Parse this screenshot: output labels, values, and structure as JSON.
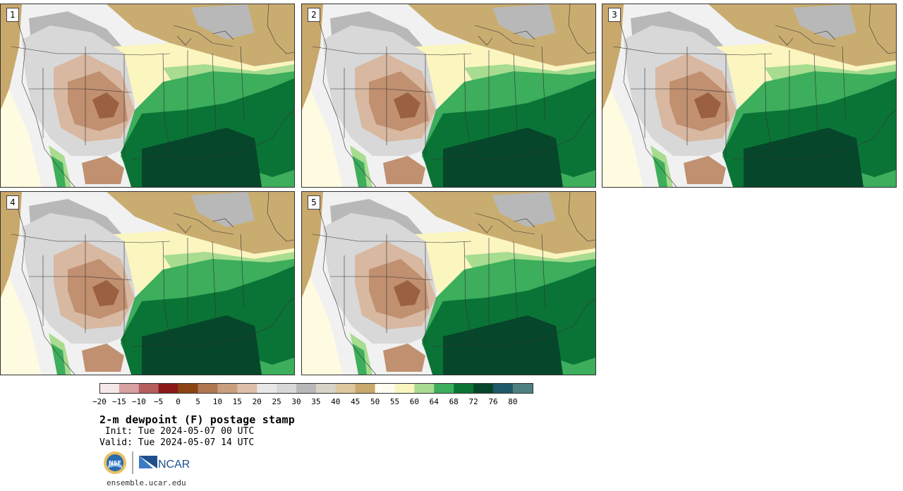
{
  "panels": [
    {
      "label": "1"
    },
    {
      "label": "2"
    },
    {
      "label": "3"
    },
    {
      "label": "4"
    },
    {
      "label": "5"
    }
  ],
  "colorbar": {
    "tick_labels": [
      "−20",
      "−15",
      "−10",
      "−5",
      "0",
      "5",
      "10",
      "15",
      "20",
      "25",
      "30",
      "35",
      "40",
      "45",
      "50",
      "55",
      "60",
      "64",
      "68",
      "72",
      "76",
      "80"
    ],
    "colors": [
      "#f5e8e8",
      "#d8a0a0",
      "#b55e5e",
      "#8b1a1a",
      "#8b4513",
      "#b07850",
      "#c8a080",
      "#dcc0a8",
      "#e8e8e8",
      "#d8d8d8",
      "#b8b8b8",
      "#d8d4c8",
      "#dcc8a0",
      "#c8aa6c",
      "#fffdf0",
      "#fbf5c0",
      "#a8dc90",
      "#3cae5c",
      "#0a7436",
      "#06462a",
      "#1e5a6a",
      "#4e8080"
    ]
  },
  "title": "2-m dewpoint (F) postage stamp",
  "init": " Init: Tue 2024-05-07 00 UTC",
  "valid": "Valid: Tue 2024-05-07 14 UTC",
  "logos": {
    "nsf": "NSF",
    "ncar": "NCAR"
  },
  "site": "ensemble.ucar.edu"
}
